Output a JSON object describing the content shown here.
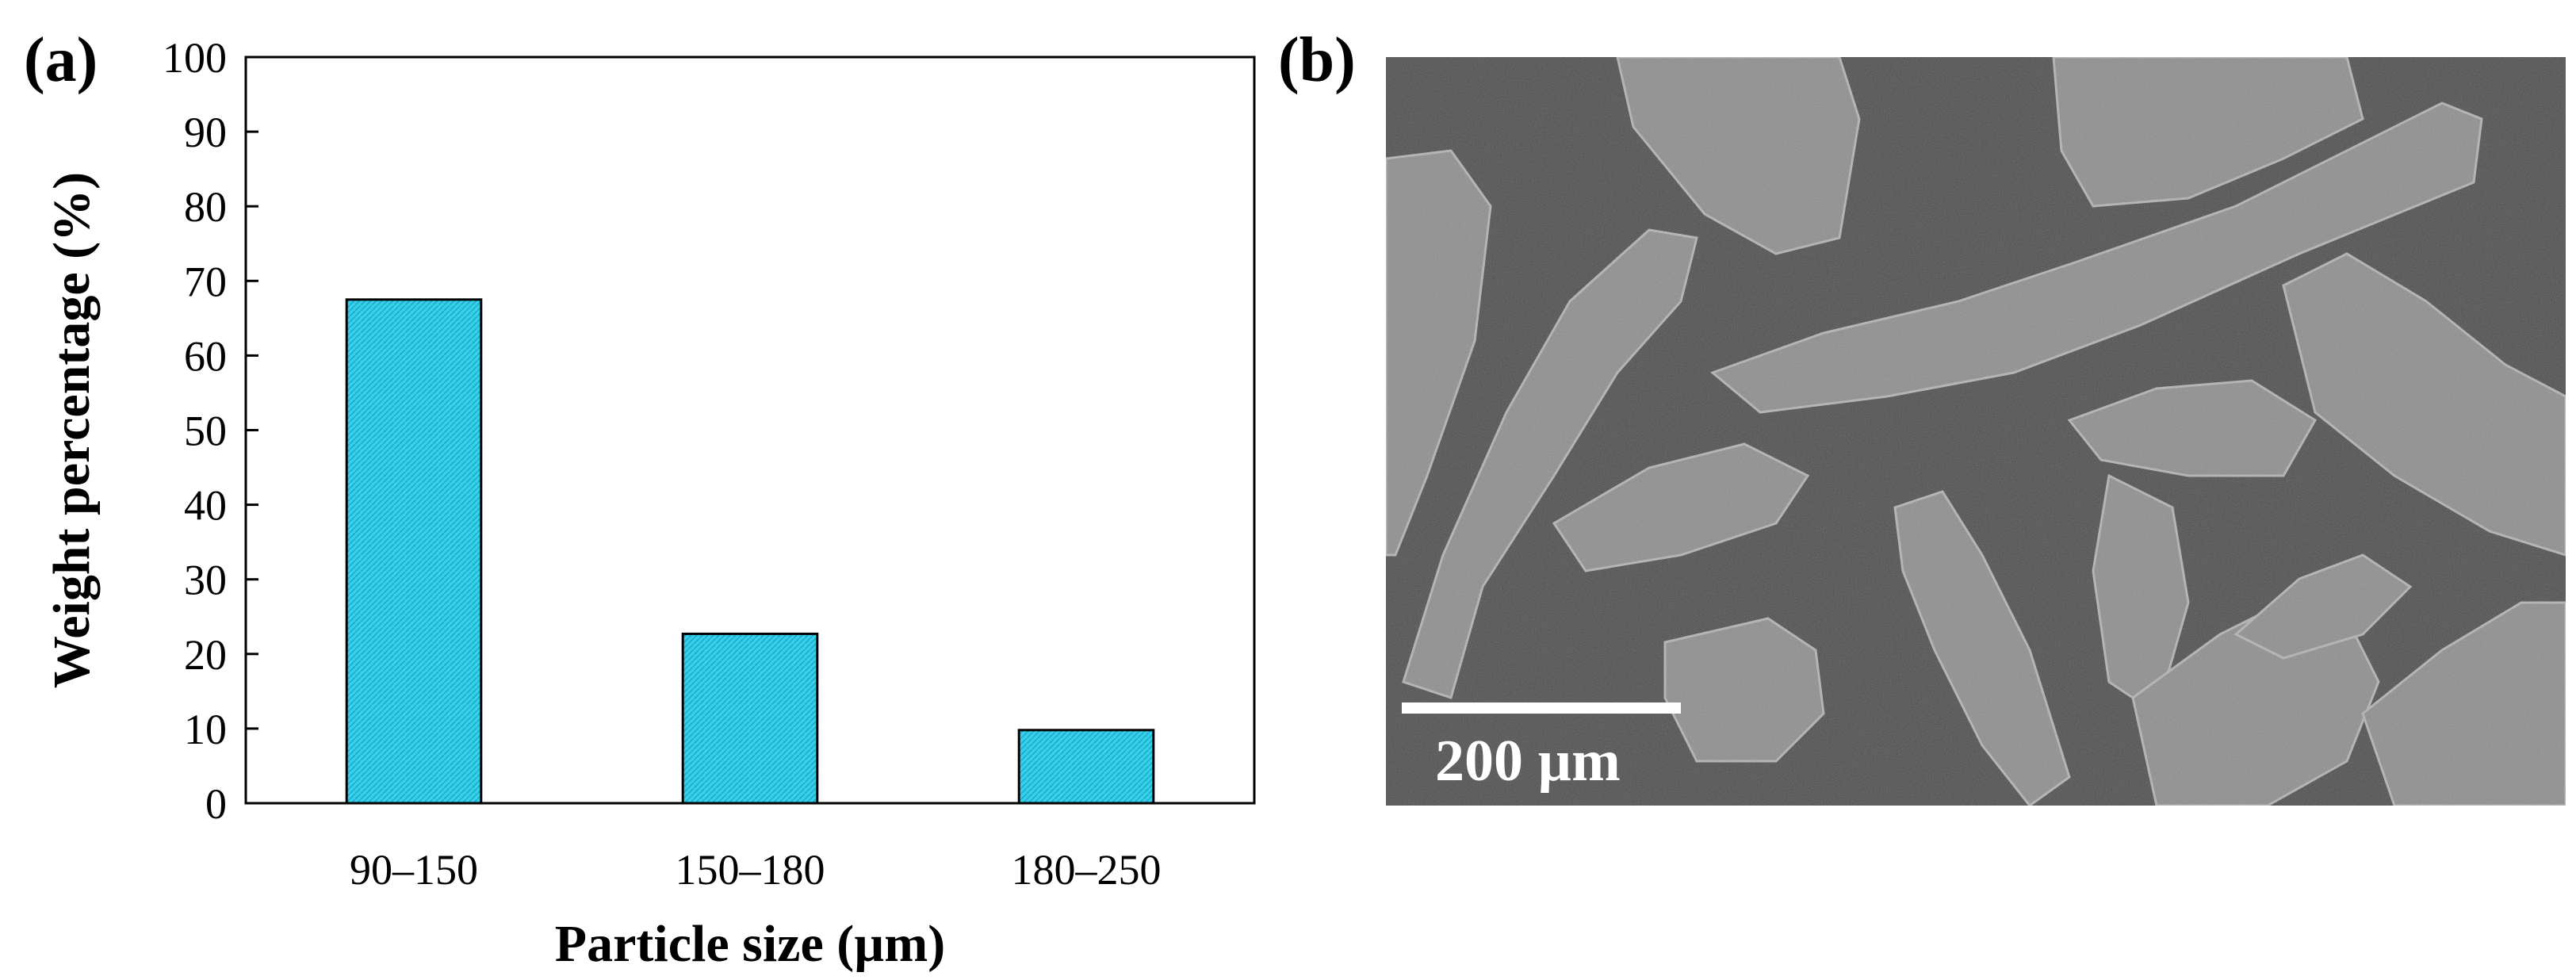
{
  "panel_a_label": "(a)",
  "panel_b_label": "(b)",
  "chart_data": {
    "type": "bar",
    "title": "",
    "categories": [
      "90–150",
      "150–180",
      "180–250"
    ],
    "values": [
      67.5,
      22.7,
      9.8
    ],
    "xlabel": "Particle size (µm)",
    "ylabel": "Weight percentage (%)",
    "ylim": [
      0,
      100
    ],
    "yticks": [
      0,
      10,
      20,
      30,
      40,
      50,
      60,
      70,
      80,
      90,
      100
    ],
    "bar_color": "#35d0ec",
    "grid": false,
    "legend": "none"
  },
  "sem_image": {
    "scale_bar_label": "200 µm"
  }
}
